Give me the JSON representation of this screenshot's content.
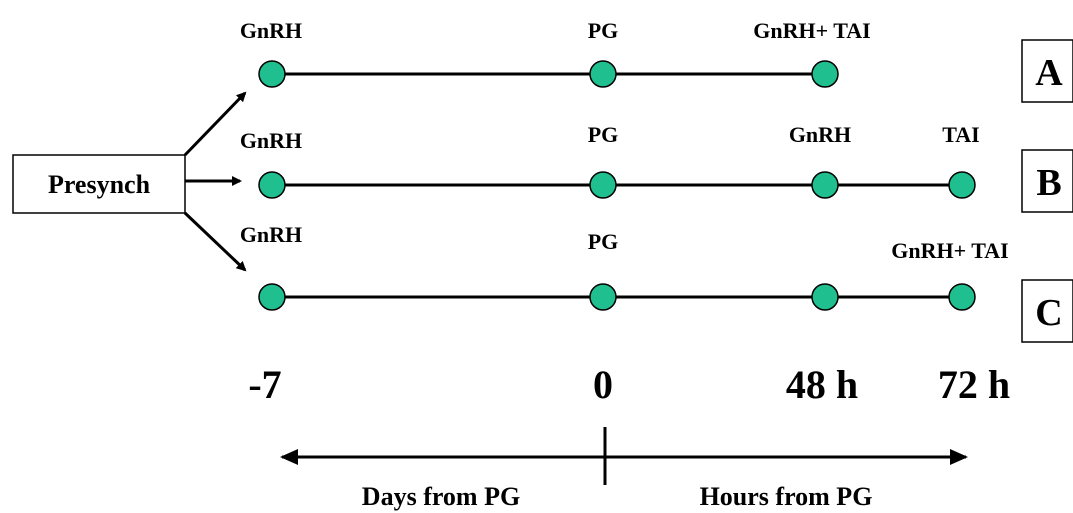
{
  "presynch": "Presynch",
  "rows": [
    {
      "id": "A",
      "top_labels": [
        "GnRH",
        "PG",
        "GnRH+ TAI"
      ]
    },
    {
      "id": "B",
      "top_labels": [
        "GnRH",
        "PG",
        "GnRH",
        "TAI"
      ]
    },
    {
      "id": "C",
      "top_labels": [
        "GnRH",
        "PG",
        "GnRH+ TAI"
      ]
    }
  ],
  "time_axis": [
    "-7",
    "0",
    "48 h",
    "72 h"
  ],
  "arrow_labels": {
    "left": "Days from PG",
    "right": "Hours from PG"
  },
  "colors": {
    "dot": "#1fbf8f",
    "line": "#000000"
  }
}
